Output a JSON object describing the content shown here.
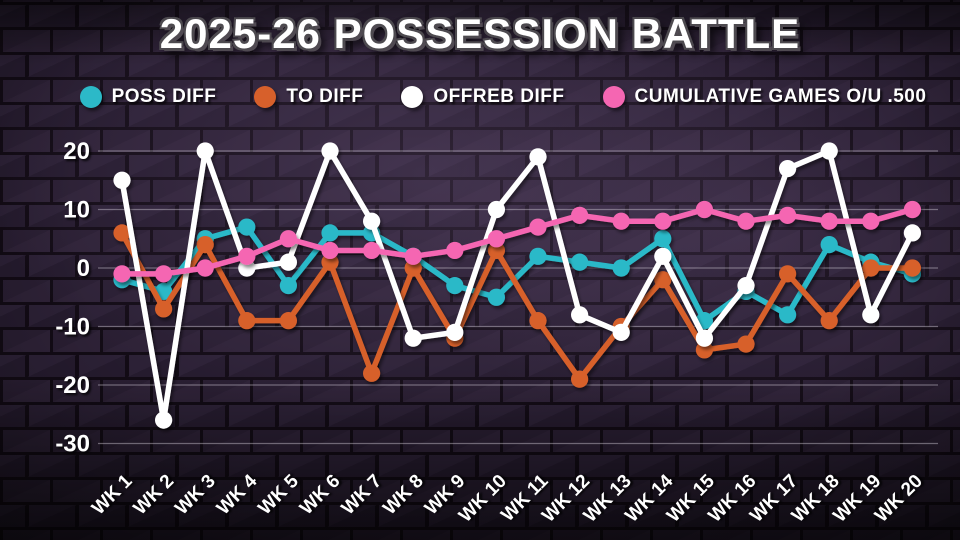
{
  "title": "2025-26 POSSESSION BATTLE",
  "legend": [
    {
      "label": "POSS DIFF",
      "color": "#2cb9c8"
    },
    {
      "label": "TO DIFF",
      "color": "#d7602b"
    },
    {
      "label": "OFFREB DIFF",
      "color": "#ffffff"
    },
    {
      "label": "CUMULATIVE GAMES O/U .500",
      "color": "#f566b2"
    }
  ],
  "chart_data": {
    "type": "line",
    "title": "2025-26 POSSESSION BATTLE",
    "categories": [
      "WK 1",
      "WK 2",
      "WK 3",
      "WK 4",
      "WK 5",
      "WK 6",
      "WK 7",
      "WK 8",
      "WK 9",
      "WK 10",
      "WK 11",
      "WK 12",
      "WK 13",
      "WK 14",
      "WK 15",
      "WK 16",
      "WK 17",
      "WK 18",
      "WK 19",
      "WK 20"
    ],
    "series": [
      {
        "name": "POSS DIFF",
        "color": "#2cb9c8",
        "values": [
          -2,
          -4,
          5,
          7,
          -3,
          6,
          6,
          2,
          -3,
          -5,
          2,
          1,
          0,
          5,
          -9,
          -4,
          -8,
          4,
          1,
          -1
        ]
      },
      {
        "name": "TO DIFF",
        "color": "#d7602b",
        "values": [
          6,
          -7,
          4,
          -9,
          -9,
          1,
          -18,
          0,
          -12,
          3,
          -9,
          -19,
          -10,
          -2,
          -14,
          -13,
          -1,
          -9,
          0,
          0
        ]
      },
      {
        "name": "OFFREB DIFF",
        "color": "#ffffff",
        "values": [
          15,
          -26,
          20,
          0,
          1,
          20,
          8,
          -12,
          -11,
          10,
          19,
          -8,
          -11,
          2,
          -12,
          -3,
          17,
          20,
          -8,
          6
        ]
      },
      {
        "name": "CUMULATIVE GAMES O/U .500",
        "color": "#f566b2",
        "values": [
          -1,
          -1,
          0,
          2,
          5,
          3,
          3,
          2,
          3,
          5,
          7,
          9,
          8,
          8,
          10,
          8,
          9,
          8,
          8,
          10
        ]
      }
    ],
    "ylim": [
      -30,
      20
    ],
    "yticks": [
      20,
      10,
      0,
      -10,
      -20,
      -30
    ],
    "grid": true,
    "legend_position": "top",
    "xlabel": "",
    "ylabel": ""
  }
}
